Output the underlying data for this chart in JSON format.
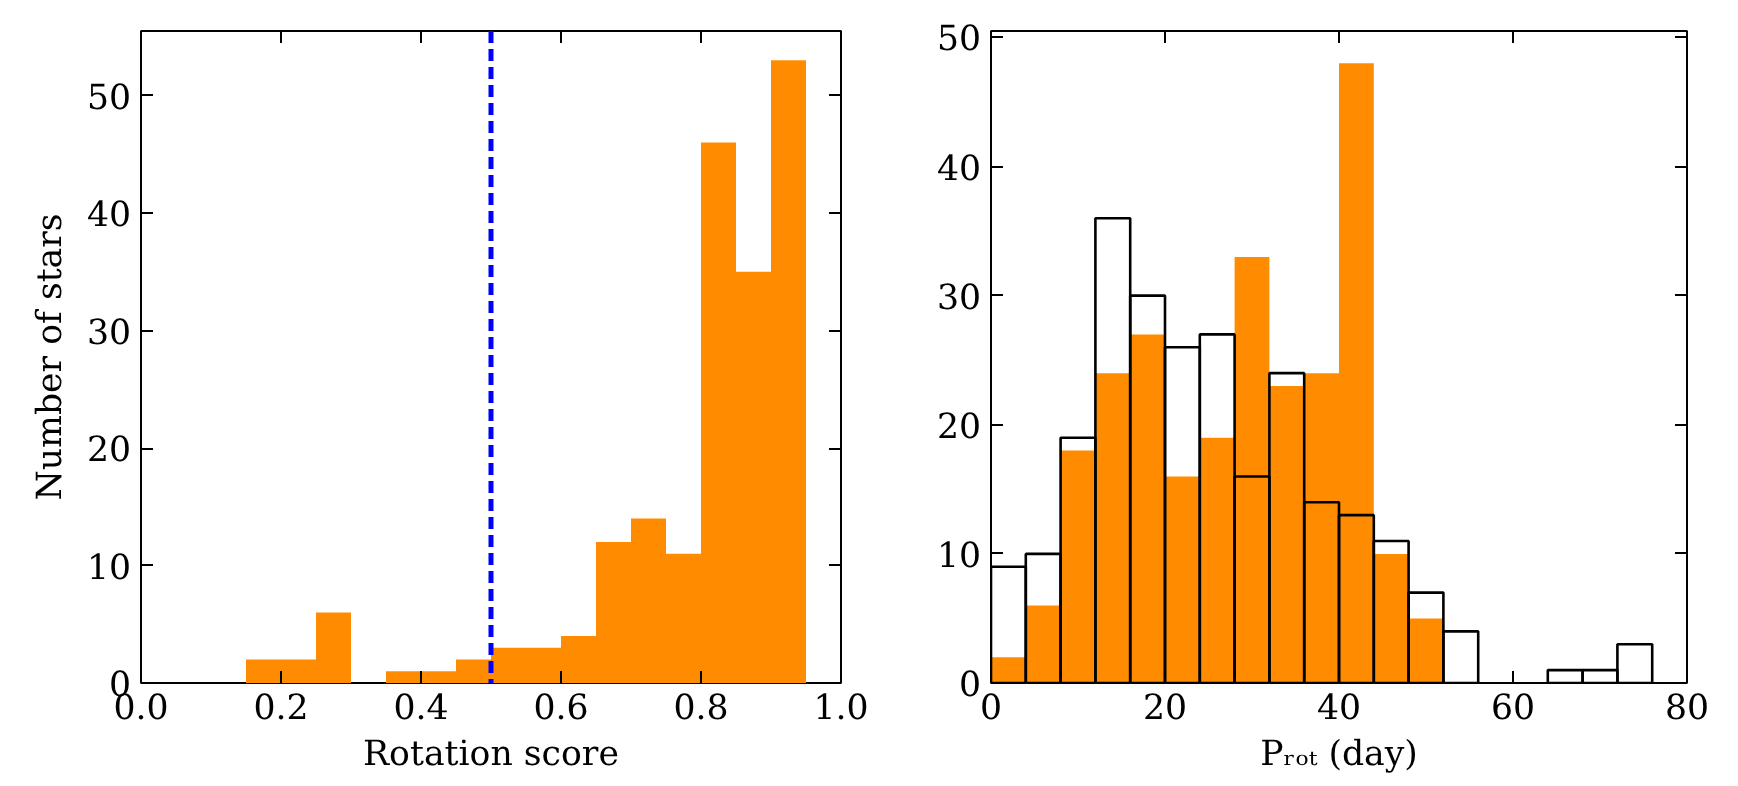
{
  "chart_data": [
    {
      "type": "histogram",
      "xlabel": "Rotation score",
      "ylabel": "Number of stars",
      "bins": [
        0.0,
        0.05,
        0.1,
        0.15,
        0.2,
        0.25,
        0.3,
        0.35,
        0.4,
        0.45,
        0.5,
        0.55,
        0.6,
        0.65,
        0.7,
        0.75,
        0.8,
        0.85,
        0.9,
        0.95
      ],
      "values": [
        0,
        0,
        0,
        2,
        2,
        6,
        0,
        1,
        1,
        2,
        3,
        3,
        4,
        12,
        14,
        11,
        46,
        35,
        53
      ],
      "color": "#ff8c00",
      "xlim": [
        0,
        1
      ],
      "xticks": [
        {
          "value": 0,
          "label": "0.0"
        },
        0.2,
        0.4,
        0.6,
        0.8,
        {
          "value": 1,
          "label": "1.0"
        }
      ],
      "ylim": [
        0,
        55.5
      ],
      "yticks": [
        0,
        10,
        20,
        30,
        40,
        50
      ],
      "ref_lines": [
        {
          "axis": "x",
          "value": 0.5,
          "color": "#0000ff",
          "line_style": "dashed"
        }
      ]
    },
    {
      "type": "histogram",
      "xlabel": "Pᵣₒₜ (day)",
      "bins": [
        0,
        4,
        8,
        12,
        16,
        20,
        24,
        28,
        32,
        36,
        40,
        44,
        48,
        52,
        56,
        60,
        64,
        68,
        72,
        76
      ],
      "series": [
        {
          "color": "#ff8c00",
          "values": [
            2,
            6,
            18,
            24,
            27,
            16,
            19,
            33,
            23,
            24,
            48,
            10,
            5,
            0,
            0,
            0,
            0,
            0,
            0
          ]
        },
        {
          "color": "#000000",
          "line_style": "solid",
          "values": [
            9,
            10,
            19,
            36,
            30,
            26,
            27,
            16,
            24,
            14,
            13,
            11,
            7,
            4,
            0,
            0,
            1,
            1,
            3
          ]
        }
      ],
      "xlim": [
        0,
        80
      ],
      "xticks": [
        0,
        20,
        40,
        60,
        80
      ],
      "ylim": [
        0,
        50.5
      ],
      "yticks": [
        0,
        10,
        20,
        30,
        40,
        50
      ]
    }
  ]
}
